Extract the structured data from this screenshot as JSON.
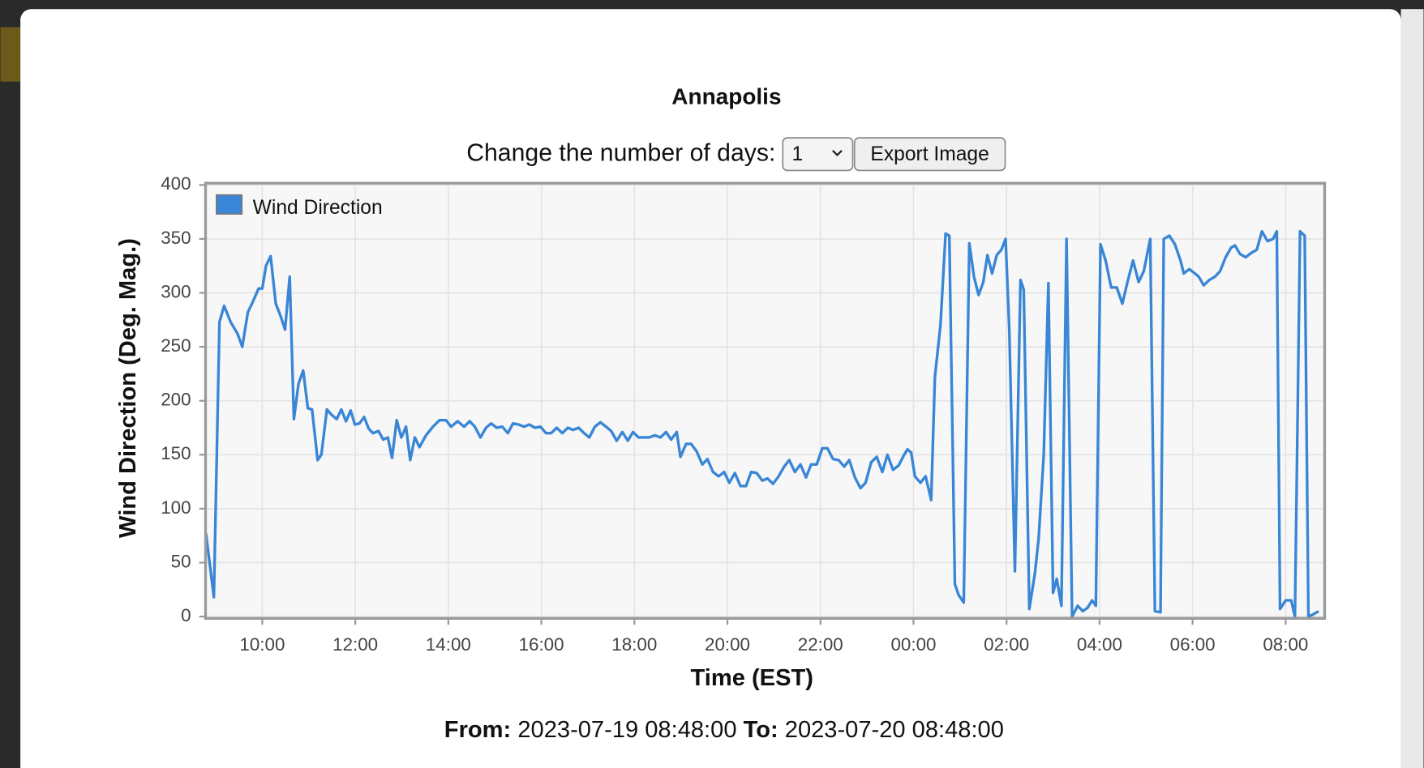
{
  "chart_data": {
    "type": "line",
    "title": "Annapolis",
    "x_label": "Time (EST)",
    "y_label": "Wind Direction (Deg. Mag.)",
    "x": [
      8.79,
      8.96,
      9.08,
      9.18,
      9.32,
      9.47,
      9.57,
      9.69,
      9.8,
      9.92,
      10.0,
      10.08,
      10.18,
      10.29,
      10.39,
      10.49,
      10.59,
      10.68,
      10.78,
      10.88,
      10.98,
      11.07,
      11.19,
      11.27,
      11.39,
      11.49,
      11.6,
      11.7,
      11.8,
      11.9,
      11.99,
      12.09,
      12.19,
      12.29,
      12.38,
      12.5,
      12.6,
      12.7,
      12.79,
      12.89,
      12.99,
      13.09,
      13.18,
      13.28,
      13.38,
      13.52,
      13.67,
      13.81,
      13.95,
      14.06,
      14.2,
      14.34,
      14.46,
      14.57,
      14.69,
      14.81,
      14.92,
      15.04,
      15.16,
      15.28,
      15.39,
      15.51,
      15.63,
      15.74,
      15.86,
      15.98,
      16.1,
      16.21,
      16.33,
      16.45,
      16.57,
      16.68,
      16.8,
      16.92,
      17.03,
      17.15,
      17.27,
      17.39,
      17.5,
      17.62,
      17.74,
      17.86,
      17.97,
      18.09,
      18.21,
      18.32,
      18.44,
      18.56,
      18.68,
      18.79,
      18.91,
      18.99,
      19.11,
      19.22,
      19.34,
      19.46,
      19.57,
      19.69,
      19.81,
      19.93,
      20.04,
      20.16,
      20.28,
      20.4,
      20.51,
      20.63,
      20.75,
      20.86,
      20.98,
      21.1,
      21.22,
      21.33,
      21.45,
      21.57,
      21.69,
      21.8,
      21.92,
      22.04,
      22.15,
      22.27,
      22.39,
      22.51,
      22.62,
      22.74,
      22.86,
      22.97,
      23.09,
      23.21,
      23.33,
      23.44,
      23.56,
      23.68,
      23.8,
      23.87,
      23.95,
      24.03,
      24.15,
      24.26,
      24.38,
      24.46,
      24.58,
      24.69,
      24.77,
      24.89,
      24.97,
      25.08,
      25.2,
      25.3,
      25.4,
      25.5,
      25.59,
      25.69,
      25.79,
      25.89,
      25.98,
      26.06,
      26.18,
      26.3,
      26.37,
      26.49,
      26.61,
      26.69,
      26.8,
      26.9,
      27.0,
      27.08,
      27.18,
      27.29,
      27.41,
      27.53,
      27.64,
      27.74,
      27.84,
      27.92,
      28.02,
      28.13,
      28.25,
      28.37,
      28.49,
      28.6,
      28.72,
      28.84,
      28.95,
      29.09,
      29.19,
      29.31,
      29.38,
      29.5,
      29.62,
      29.74,
      29.81,
      29.93,
      30.05,
      30.13,
      30.24,
      30.36,
      30.48,
      30.59,
      30.71,
      30.83,
      30.91,
      31.02,
      31.14,
      31.26,
      31.38,
      31.49,
      31.61,
      31.73,
      31.81,
      31.88,
      32.0,
      32.12,
      32.2,
      32.31,
      32.41,
      32.49,
      32.59,
      32.71
    ],
    "series": [
      {
        "name": "Wind Direction",
        "color": "#3a86d6",
        "values": [
          77,
          18,
          273,
          288,
          273,
          262,
          250,
          282,
          292,
          304,
          304,
          325,
          334,
          290,
          279,
          266,
          315,
          183,
          216,
          228,
          193,
          192,
          145,
          150,
          192,
          187,
          183,
          192,
          181,
          191,
          178,
          179,
          185,
          174,
          170,
          172,
          164,
          166,
          147,
          182,
          166,
          176,
          145,
          166,
          157,
          168,
          176,
          182,
          182,
          176,
          181,
          176,
          181,
          176,
          166,
          175,
          179,
          175,
          176,
          170,
          179,
          178,
          176,
          178,
          175,
          176,
          170,
          170,
          175,
          170,
          175,
          173,
          175,
          170,
          166,
          176,
          180,
          176,
          172,
          163,
          171,
          163,
          171,
          166,
          166,
          166,
          168,
          166,
          171,
          164,
          171,
          148,
          160,
          160,
          153,
          141,
          146,
          134,
          130,
          134,
          124,
          133,
          121,
          121,
          134,
          133,
          126,
          128,
          123,
          130,
          139,
          145,
          134,
          141,
          129,
          141,
          141,
          156,
          156,
          146,
          145,
          139,
          145,
          129,
          119,
          124,
          143,
          148,
          134,
          150,
          136,
          140,
          150,
          155,
          152,
          130,
          124,
          130,
          108,
          222,
          270,
          355,
          353,
          30,
          20,
          13,
          346,
          315,
          298,
          310,
          335,
          318,
          335,
          340,
          350,
          265,
          42,
          312,
          303,
          7,
          40,
          72,
          150,
          309,
          22,
          35,
          10,
          350,
          0,
          10,
          5,
          8,
          15,
          10,
          345,
          330,
          305,
          305,
          290,
          310,
          330,
          310,
          320,
          350,
          5,
          4,
          350,
          353,
          345,
          330,
          318,
          322,
          318,
          315,
          307,
          312,
          315,
          320,
          333,
          342,
          344,
          336,
          333,
          337,
          340,
          357,
          348,
          350,
          357,
          7,
          15,
          15,
          0,
          357,
          353,
          0,
          2,
          5
        ]
      }
    ],
    "xlim": [
      8.8,
      32.8
    ],
    "xticks": [
      {
        "value": 10,
        "label": "10:00"
      },
      {
        "value": 12,
        "label": "12:00"
      },
      {
        "value": 14,
        "label": "14:00"
      },
      {
        "value": 16,
        "label": "16:00"
      },
      {
        "value": 18,
        "label": "18:00"
      },
      {
        "value": 20,
        "label": "20:00"
      },
      {
        "value": 22,
        "label": "22:00"
      },
      {
        "value": 24,
        "label": "00:00"
      },
      {
        "value": 26,
        "label": "02:00"
      },
      {
        "value": 28,
        "label": "04:00"
      },
      {
        "value": 30,
        "label": "06:00"
      },
      {
        "value": 32,
        "label": "08:00"
      }
    ],
    "ylim": [
      0,
      400
    ],
    "yticks": [
      0,
      50,
      100,
      150,
      200,
      250,
      300,
      350,
      400
    ],
    "grid": true,
    "legend": "upper-left"
  },
  "controls": {
    "days_label": "Change the number of days:",
    "days_selected": "1",
    "export_button": "Export Image"
  },
  "footer": {
    "from_label": "From:",
    "from": "2023-07-19 08:48:00",
    "to_label": "To:",
    "to": "2023-07-20 08:48:00"
  }
}
